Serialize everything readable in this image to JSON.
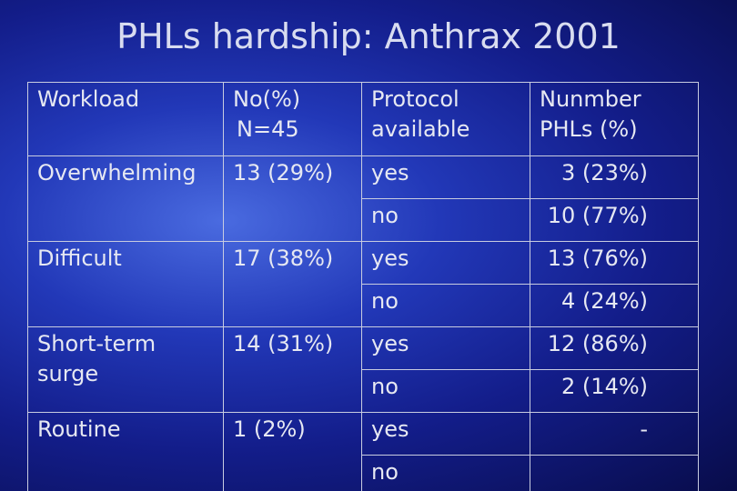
{
  "title": "PHLs hardship: Anthrax 2001",
  "table": {
    "header": {
      "workload": "Workload",
      "count": "No(%)",
      "n": "N=45",
      "protocol": "Protocol available",
      "number": "Nunmber PHLs (%)"
    },
    "groups": [
      {
        "workload": "Overwhelming",
        "count": "13 (29%)",
        "rows": [
          {
            "protocol": "yes",
            "number": "3 (23%)"
          },
          {
            "protocol": "no",
            "number": "10 (77%)"
          }
        ]
      },
      {
        "workload": "Difficult",
        "count": "17 (38%)",
        "rows": [
          {
            "protocol": "yes",
            "number": "13 (76%)"
          },
          {
            "protocol": "no",
            "number": "4 (24%)"
          }
        ]
      },
      {
        "workload": "Short-term surge",
        "count": "14 (31%)",
        "rows": [
          {
            "protocol": "yes",
            "number": "12 (86%)"
          },
          {
            "protocol": "no",
            "number": "2 (14%)"
          }
        ]
      },
      {
        "workload": "Routine",
        "count": "1 (2%)",
        "rows": [
          {
            "protocol": "yes",
            "number": "-"
          },
          {
            "protocol": "no"
          }
        ]
      }
    ]
  }
}
